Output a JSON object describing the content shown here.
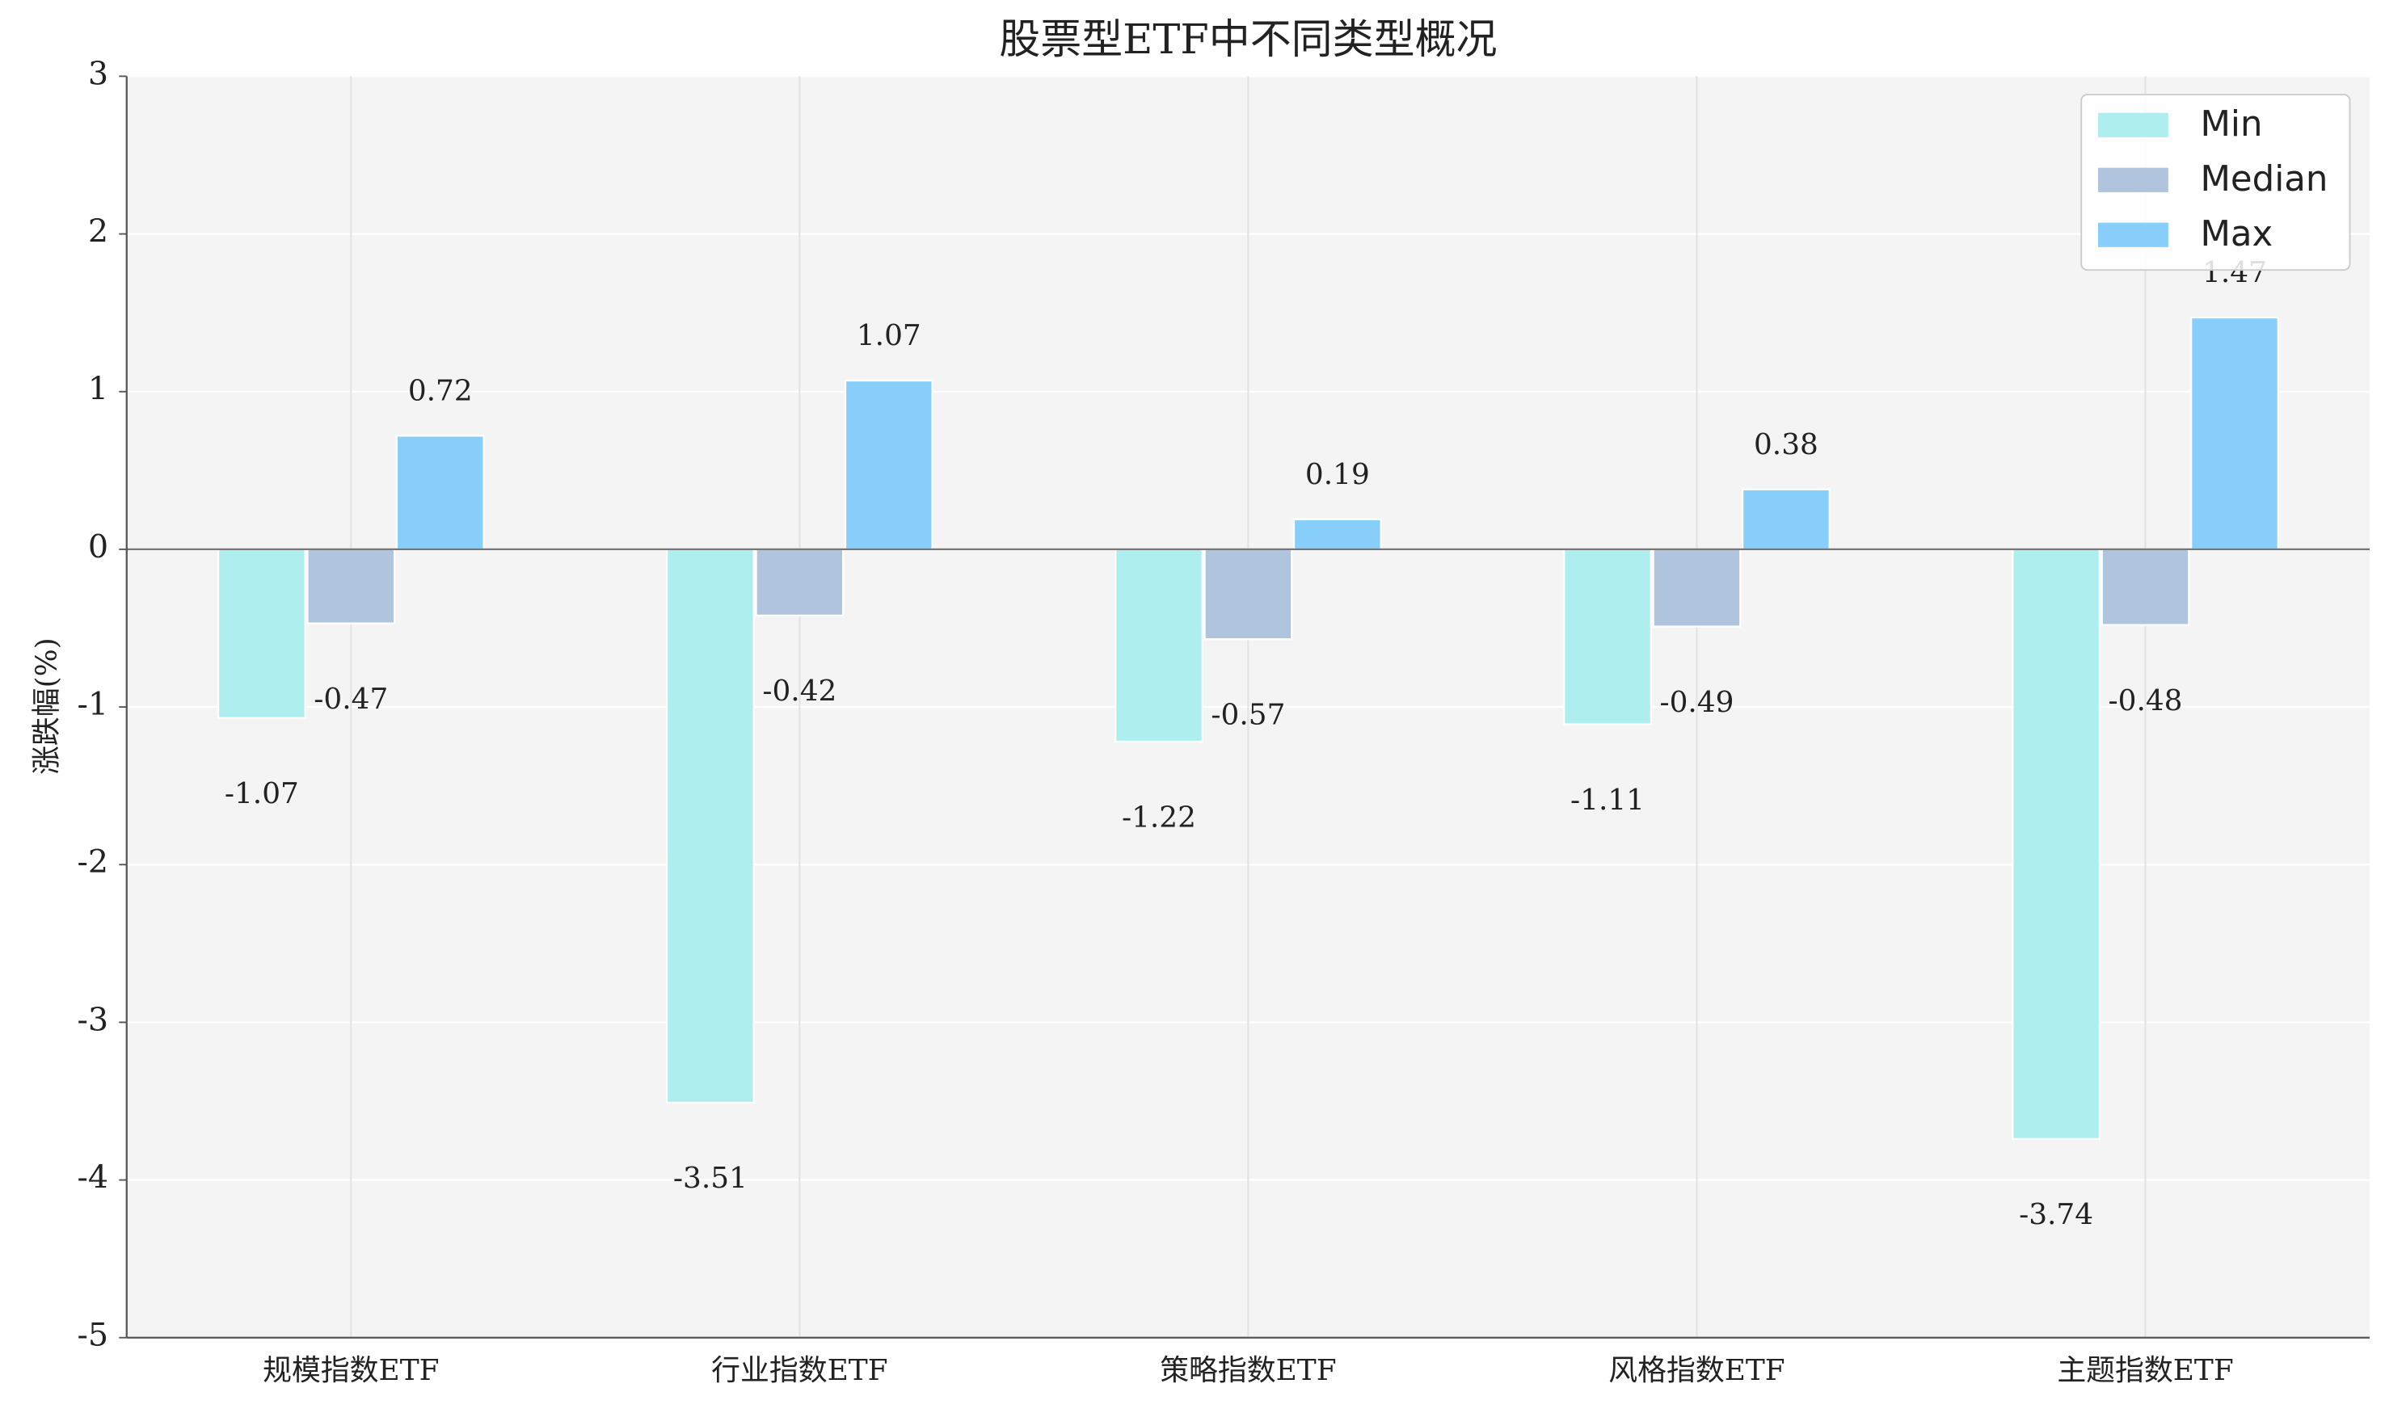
{
  "chart_data": {
    "type": "bar",
    "title": "股票型ETF中不同类型概况",
    "ylabel": "涨跌幅(%)",
    "categories": [
      "规模指数ETF",
      "行业指数ETF",
      "策略指数ETF",
      "风格指数ETF",
      "主题指数ETF"
    ],
    "series": [
      {
        "name": "Min",
        "color": "#afeeee",
        "values": [
          -1.07,
          -3.51,
          -1.22,
          -1.11,
          -3.74
        ]
      },
      {
        "name": "Median",
        "color": "#b0c4de",
        "values": [
          -0.47,
          -0.42,
          -0.57,
          -0.49,
          -0.48
        ]
      },
      {
        "name": "Max",
        "color": "#87cefa",
        "values": [
          0.72,
          1.07,
          0.19,
          0.38,
          1.47
        ]
      }
    ],
    "ylim": [
      -5,
      3
    ],
    "yticks": [
      -5,
      -4,
      -3,
      -2,
      -1,
      0,
      1,
      2,
      3
    ],
    "grid": true,
    "legend": "upper right"
  }
}
